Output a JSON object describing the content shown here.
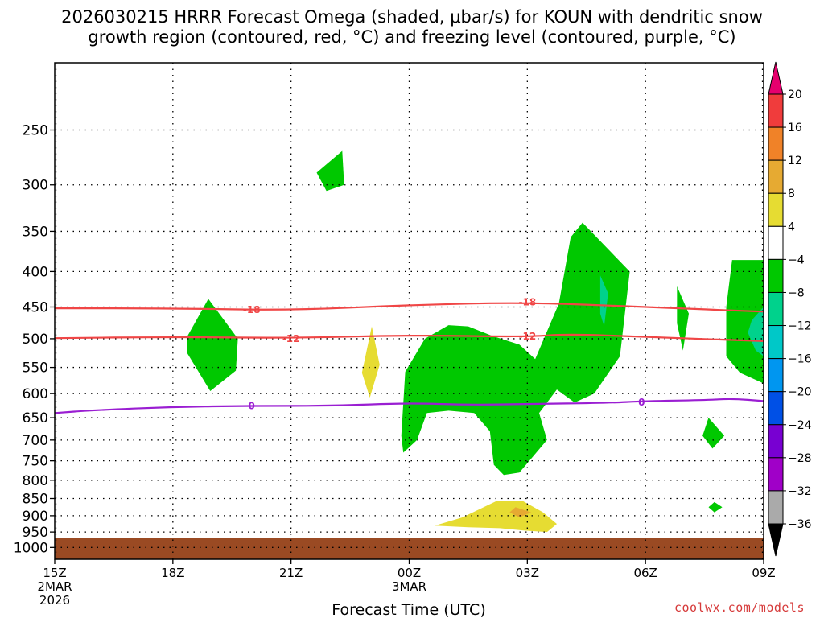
{
  "chart_data": {
    "type": "heatmap",
    "title_line1": "2026030215 HRRR Forecast Omega (shaded, μbar/s) for KOUN with dendritic snow",
    "title_line2": "growth region (contoured, red, °C) and freezing level (contoured, purple, °C)",
    "xlabel": "Forecast Time (UTC)",
    "credit": "coolwx.com/models",
    "x_ticks": [
      {
        "hour": 0,
        "label": "15Z",
        "sub1": "2MAR",
        "sub2": "2026"
      },
      {
        "hour": 3,
        "label": "18Z",
        "sub1": "",
        "sub2": ""
      },
      {
        "hour": 6,
        "label": "21Z",
        "sub1": "",
        "sub2": ""
      },
      {
        "hour": 9,
        "label": "00Z",
        "sub1": "3MAR",
        "sub2": ""
      },
      {
        "hour": 12,
        "label": "03Z",
        "sub1": "",
        "sub2": ""
      },
      {
        "hour": 15,
        "label": "06Z",
        "sub1": "",
        "sub2": ""
      },
      {
        "hour": 18,
        "label": "09Z",
        "sub1": "",
        "sub2": ""
      }
    ],
    "x_range_hours": [
      0,
      18
    ],
    "y_ticks_hpa": [
      250,
      300,
      350,
      400,
      450,
      500,
      550,
      600,
      650,
      700,
      750,
      800,
      850,
      900,
      950,
      1000
    ],
    "y_range_hpa": [
      200,
      1040
    ],
    "y_scale": "log-pressure",
    "grid": true,
    "colorbar": {
      "levels": [
        20,
        16,
        12,
        8,
        4,
        -4,
        -8,
        -12,
        -16,
        -20,
        -24,
        -28,
        -32,
        -36
      ],
      "colors": [
        "#f03c3c",
        "#f08228",
        "#e6aa32",
        "#e6dc32",
        "#ffffff",
        "#00c800",
        "#00d28c",
        "#00c8c8",
        "#0096f0",
        "#0050e6",
        "#7800d2",
        "#a000c8",
        "#aaaaaa"
      ],
      "top_arrow_color": "#e6006e",
      "bottom_arrow_color": "#000000"
    },
    "contours": [
      {
        "name": "-18",
        "color": "#f04646",
        "label": "-18",
        "points": [
          [
            0,
            452
          ],
          [
            3,
            452
          ],
          [
            6,
            455
          ],
          [
            9,
            447
          ],
          [
            12,
            443
          ],
          [
            15,
            450
          ],
          [
            18,
            457
          ]
        ],
        "label_at": [
          [
            5,
            454
          ],
          [
            12,
            443
          ]
        ]
      },
      {
        "name": "-12",
        "color": "#f04646",
        "label": "-12",
        "points": [
          [
            0,
            499
          ],
          [
            3,
            497
          ],
          [
            6,
            499
          ],
          [
            9,
            494
          ],
          [
            12,
            497
          ],
          [
            13,
            492
          ],
          [
            15,
            497
          ],
          [
            18,
            504
          ]
        ],
        "label_at": [
          [
            6,
            500
          ],
          [
            12,
            496
          ]
        ]
      },
      {
        "name": "0",
        "color": "#9a1ed2",
        "label": "0",
        "points": [
          [
            0,
            640
          ],
          [
            1,
            634
          ],
          [
            3,
            627
          ],
          [
            5,
            625
          ],
          [
            7,
            625
          ],
          [
            9,
            619
          ],
          [
            10.5,
            623
          ],
          [
            12,
            621
          ],
          [
            14,
            619
          ],
          [
            15,
            615
          ],
          [
            16.5,
            613
          ],
          [
            17.2,
            610
          ],
          [
            18,
            615
          ]
        ],
        "label_at": [
          [
            5,
            625
          ],
          [
            14.9,
            618
          ]
        ]
      }
    ],
    "shaded_regions": [
      {
        "value_class": "-4",
        "color": "#00c800",
        "points": [
          [
            3.35,
            498
          ],
          [
            3.9,
            438
          ],
          [
            4.65,
            500
          ],
          [
            4.6,
            556
          ],
          [
            3.95,
            595
          ],
          [
            3.35,
            523
          ]
        ]
      },
      {
        "value_class": "-4",
        "color": "#00c800",
        "points": [
          [
            6.65,
            288
          ],
          [
            7.3,
            268
          ],
          [
            7.35,
            300
          ],
          [
            6.9,
            306
          ]
        ]
      },
      {
        "value_class": "4",
        "color": "#e6dc32",
        "points": [
          [
            8.05,
            480
          ],
          [
            8.25,
            545
          ],
          [
            8.0,
            608
          ],
          [
            7.8,
            560
          ]
        ]
      },
      {
        "value_class": "-4",
        "color": "#00c800",
        "points": [
          [
            8.9,
            558
          ],
          [
            9.4,
            500
          ],
          [
            10.0,
            478
          ],
          [
            10.5,
            480
          ],
          [
            11.1,
            495
          ],
          [
            11.8,
            510
          ],
          [
            12.2,
            535
          ],
          [
            12.8,
            445
          ],
          [
            13.1,
            357
          ],
          [
            13.4,
            340
          ],
          [
            14.6,
            400
          ],
          [
            14.35,
            530
          ],
          [
            13.7,
            600
          ],
          [
            13.2,
            618
          ],
          [
            12.75,
            592
          ],
          [
            12.3,
            640
          ],
          [
            12.5,
            700
          ],
          [
            11.8,
            780
          ],
          [
            11.4,
            786
          ],
          [
            11.15,
            760
          ],
          [
            11.05,
            680
          ],
          [
            10.65,
            640
          ],
          [
            10.0,
            635
          ],
          [
            9.45,
            640
          ],
          [
            9.2,
            700
          ],
          [
            8.85,
            730
          ],
          [
            8.8,
            690
          ]
        ]
      },
      {
        "value_class": "-8",
        "color": "#00d28c",
        "points": [
          [
            13.85,
            405
          ],
          [
            14.05,
            430
          ],
          [
            13.95,
            480
          ],
          [
            13.85,
            460
          ]
        ]
      },
      {
        "value_class": "-4",
        "color": "#00c800",
        "points": [
          [
            15.8,
            420
          ],
          [
            16.1,
            460
          ],
          [
            15.95,
            520
          ],
          [
            15.8,
            475
          ]
        ]
      },
      {
        "value_class": "-4",
        "color": "#00c800",
        "points": [
          [
            16.6,
            650
          ],
          [
            17.0,
            690
          ],
          [
            16.7,
            720
          ],
          [
            16.45,
            690
          ]
        ]
      },
      {
        "value_class": "-4",
        "color": "#00c800",
        "points": [
          [
            16.75,
            860
          ],
          [
            16.95,
            875
          ],
          [
            16.75,
            890
          ],
          [
            16.6,
            875
          ]
        ]
      },
      {
        "value_class": "-4",
        "color": "#00c800",
        "points": [
          [
            17.2,
            385
          ],
          [
            18.0,
            385
          ],
          [
            18.0,
            580
          ],
          [
            17.4,
            560
          ],
          [
            17.05,
            530
          ],
          [
            17.05,
            450
          ]
        ]
      },
      {
        "value_class": "-8",
        "color": "#00d28c",
        "points": [
          [
            17.7,
            470
          ],
          [
            18.0,
            450
          ],
          [
            18.0,
            530
          ],
          [
            17.8,
            520
          ],
          [
            17.6,
            490
          ]
        ]
      },
      {
        "value_class": "4",
        "color": "#e6dc32",
        "points": [
          [
            9.65,
            930
          ],
          [
            10.35,
            905
          ],
          [
            11.2,
            858
          ],
          [
            11.9,
            858
          ],
          [
            12.4,
            890
          ],
          [
            12.75,
            925
          ],
          [
            12.5,
            950
          ],
          [
            11.9,
            945
          ],
          [
            11.3,
            938
          ],
          [
            10.5,
            935
          ]
        ]
      },
      {
        "value_class": "8",
        "color": "#e6aa32",
        "points": [
          [
            11.7,
            875
          ],
          [
            12.1,
            890
          ],
          [
            11.8,
            905
          ],
          [
            11.55,
            890
          ]
        ]
      }
    ],
    "ground": {
      "color": "#9a4a23",
      "top_hpa": 970
    }
  }
}
